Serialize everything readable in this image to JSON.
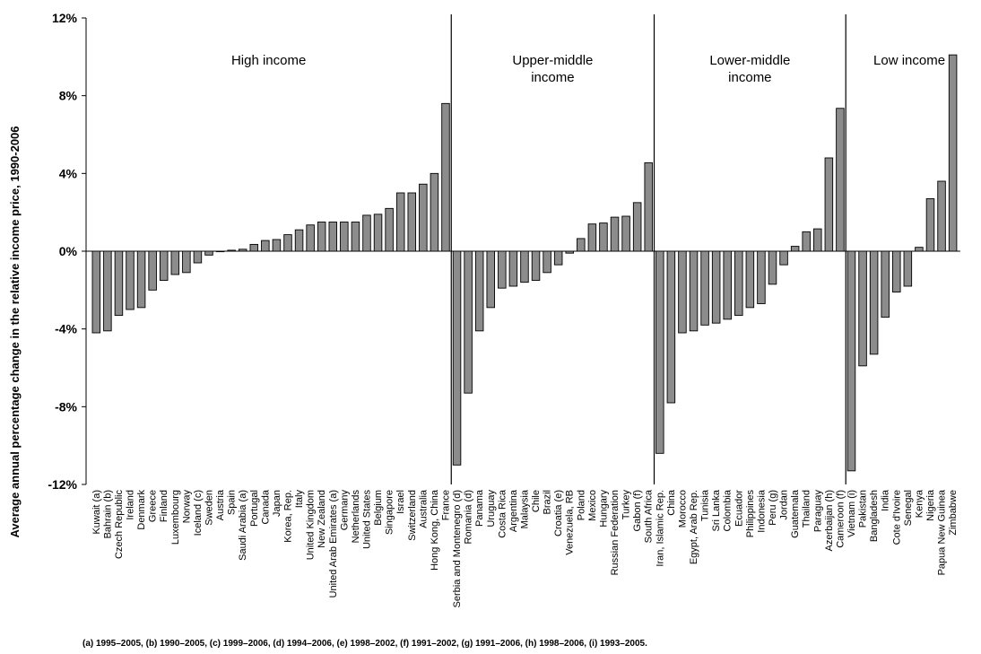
{
  "chart_data": {
    "type": "bar",
    "ylabel": "Average annual percentage change in the relative income price, 1990-2006",
    "ylim": [
      -12,
      12
    ],
    "yticks": [
      {
        "value": 12,
        "label": "12%"
      },
      {
        "value": 8,
        "label": "8%"
      },
      {
        "value": 4,
        "label": "4%"
      },
      {
        "value": 0,
        "label": "0%"
      },
      {
        "value": -4,
        "label": "-4%"
      },
      {
        "value": -8,
        "label": "-8%"
      },
      {
        "value": -12,
        "label": "-12%"
      }
    ],
    "grid": false,
    "bar_color": "#8c8c8c",
    "groups": [
      {
        "name_lines": [
          "High income"
        ],
        "categories": [
          "Kuwait (a)",
          "Bahrain (b)",
          "Czech Republic",
          "Ireland",
          "Denmark",
          "Greece",
          "Finland",
          "Luxembourg",
          "Norway",
          "Iceland (c)",
          "Sweden",
          "Austria",
          "Spain",
          "Saudi Arabia (a)",
          "Portugal",
          "Canada",
          "Japan",
          "Korea, Rep.",
          "Italy",
          "United Kingdom",
          "New Zealand",
          "United Arab Emirates (a)",
          "Germany",
          "Netherlands",
          "United States",
          "Belgium",
          "Singapore",
          "Israel",
          "Switzerland",
          "Australia",
          "Hong Kong, China",
          "France"
        ],
        "values": [
          -4.2,
          -4.1,
          -3.3,
          -3.0,
          -2.9,
          -2.0,
          -1.5,
          -1.2,
          -1.1,
          -0.6,
          -0.2,
          0.0,
          0.05,
          0.1,
          0.35,
          0.55,
          0.6,
          0.85,
          1.1,
          1.35,
          1.5,
          1.5,
          1.5,
          1.5,
          1.85,
          1.9,
          2.2,
          3.0,
          3.0,
          3.45,
          4.0,
          7.6
        ]
      },
      {
        "name_lines": [
          "Upper-middle",
          "income"
        ],
        "categories": [
          "Serbia and Montenegro (d)",
          "Romania (d)",
          "Panama",
          "Uruguay",
          "Costa Rica",
          "Argentina",
          "Malaysia",
          "Chile",
          "Brazil",
          "Croatia (e)",
          "Venezuela, RB",
          "Poland",
          "Mexico",
          "Hungary",
          "Russian Federation",
          "Turkey",
          "Gabon (f)",
          "South Africa"
        ],
        "values": [
          -11.0,
          -7.3,
          -4.1,
          -2.9,
          -1.9,
          -1.8,
          -1.6,
          -1.5,
          -1.1,
          -0.7,
          -0.1,
          0.65,
          1.4,
          1.45,
          1.75,
          1.8,
          2.5,
          4.55
        ]
      },
      {
        "name_lines": [
          "Lower-middle",
          "income"
        ],
        "categories": [
          "Iran, Islamic Rep.",
          "China",
          "Morocco",
          "Egypt, Arab Rep.",
          "Tunisia",
          "Sri Lanka",
          "Colombia",
          "Ecuador",
          "Philippines",
          "Indonesia",
          "Peru (g)",
          "Jordan",
          "Guatemala",
          "Thailand",
          "Paraguay",
          "Azerbaijan (h)",
          "Cameroon (f)"
        ],
        "values": [
          -10.4,
          -7.8,
          -4.2,
          -4.1,
          -3.8,
          -3.7,
          -3.5,
          -3.3,
          -2.9,
          -2.7,
          -1.7,
          -0.7,
          0.25,
          1.0,
          1.15,
          4.8,
          7.35
        ]
      },
      {
        "name_lines": [
          "Low income"
        ],
        "categories": [
          "Vietnam (i)",
          "Pakistan",
          "Bangladesh",
          "India",
          "Cote d'Ivoire",
          "Senegal",
          "Kenya",
          "Nigeria",
          "Papua New Guinea",
          "Zimbabwe"
        ],
        "values": [
          -11.3,
          -5.9,
          -5.3,
          -3.4,
          -2.1,
          -1.8,
          0.2,
          2.7,
          3.6,
          10.1
        ]
      }
    ],
    "footnote": "(a) 1995–2005, (b) 1990–2005, (c) 1999–2006, (d) 1994–2006, (e) 1998–2002, (f) 1991–2002, (g) 1991–2006, (h) 1998–2006, (i) 1993–2005."
  }
}
